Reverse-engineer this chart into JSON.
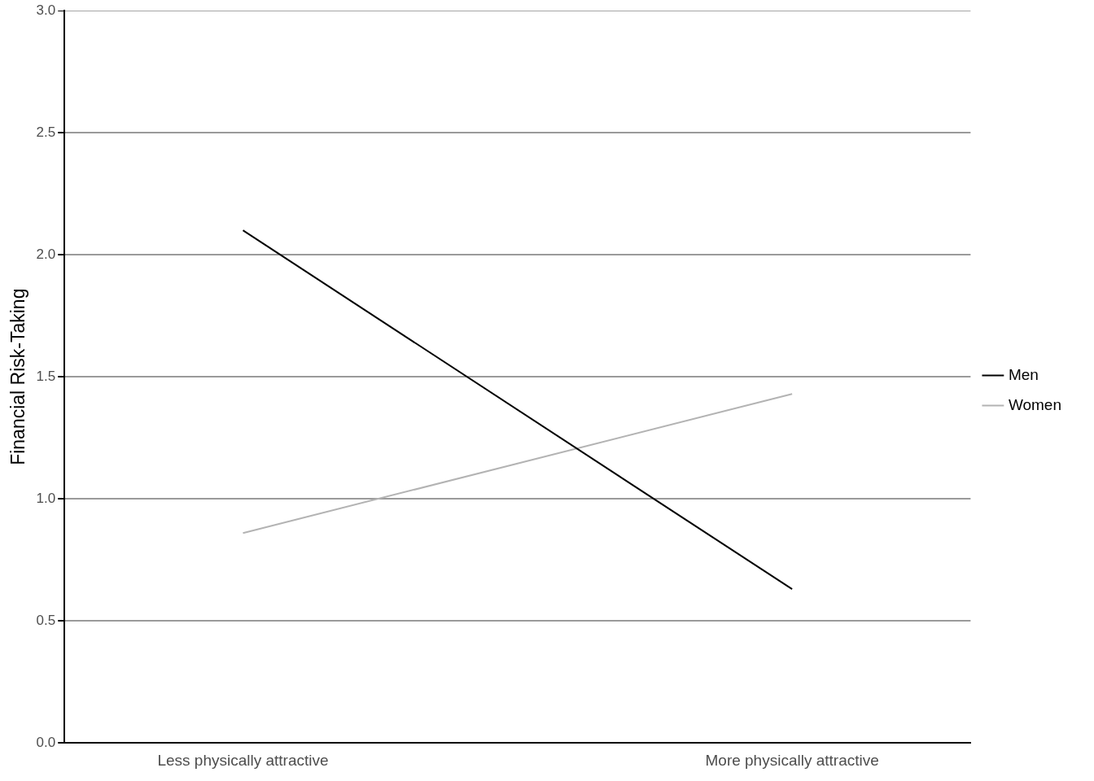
{
  "chart_data": {
    "type": "line",
    "ylabel": "Financial Risk-Taking",
    "categories": [
      "Less physically attractive",
      "More physically attractive"
    ],
    "series": [
      {
        "name": "Men",
        "color": "#000000",
        "values": [
          2.1,
          0.63
        ]
      },
      {
        "name": "Women",
        "color": "#b3b3b3",
        "values": [
          0.86,
          1.43
        ]
      }
    ],
    "ylim": [
      0,
      3
    ],
    "yticks": [
      {
        "value": 0,
        "label": "0.0"
      },
      {
        "value": 0.5,
        "label": "0.5"
      },
      {
        "value": 1,
        "label": "1.0"
      },
      {
        "value": 1.5,
        "label": "1.5"
      },
      {
        "value": 2,
        "label": "2.0"
      },
      {
        "value": 2.5,
        "label": "2.5"
      },
      {
        "value": 3,
        "label": "3.0"
      }
    ],
    "grid": "y",
    "legend": "right",
    "marker": "none",
    "line_style": "solid"
  }
}
